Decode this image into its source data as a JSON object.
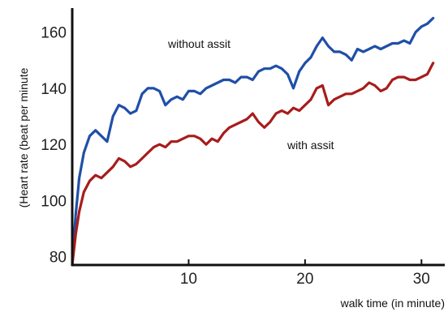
{
  "chart_data": {
    "type": "line",
    "title": "",
    "xlabel": "walk time (in minute)",
    "ylabel": "(Heart rate (beat per minute",
    "xlim": [
      0,
      32
    ],
    "ylim": [
      77,
      168
    ],
    "x_ticks": [
      10,
      20,
      30
    ],
    "y_ticks": [
      80,
      100,
      120,
      140,
      160
    ],
    "grid": false,
    "legend": "none",
    "annotations": [
      {
        "text": "without assit",
        "x": 15.2,
        "y": 155
      },
      {
        "text": "with assit",
        "x": 23.2,
        "y": 123
      }
    ],
    "series": [
      {
        "name": "without assit",
        "color": "#1f4fa8",
        "x": [
          0,
          0.3,
          0.6,
          1.0,
          1.5,
          2.0,
          2.5,
          3.0,
          3.5,
          4.0,
          4.5,
          5.0,
          5.5,
          6.0,
          6.5,
          7.0,
          7.5,
          8.0,
          8.5,
          9.0,
          9.5,
          10.0,
          10.5,
          11.0,
          11.5,
          12.0,
          12.5,
          13.0,
          13.5,
          14.0,
          14.5,
          15.0,
          15.5,
          16.0,
          16.5,
          17.0,
          17.5,
          18.0,
          18.5,
          19.0,
          19.5,
          20.0,
          20.5,
          21.0,
          21.5,
          22.0,
          22.5,
          23.0,
          23.5,
          24.0,
          24.5,
          25.0,
          25.5,
          26.0,
          26.5,
          27.0,
          27.5,
          28.0,
          28.5,
          29.0,
          29.5,
          30.0,
          30.5,
          31.0
        ],
        "values": [
          77,
          95,
          108,
          117,
          123,
          125,
          123,
          121,
          130,
          134,
          133,
          131,
          132,
          138,
          140,
          140,
          139,
          134,
          136,
          137,
          136,
          139,
          139,
          138,
          140,
          141,
          142,
          143,
          143,
          142,
          144,
          144,
          143,
          146,
          147,
          147,
          148,
          147,
          145,
          140,
          146,
          149,
          151,
          155,
          158,
          155,
          153,
          153,
          152,
          150,
          154,
          153,
          154,
          155,
          154,
          155,
          156,
          156,
          157,
          156,
          160,
          162,
          163,
          165
        ]
      },
      {
        "name": "with assit",
        "color": "#a81c1c",
        "x": [
          0,
          0.3,
          0.6,
          1.0,
          1.5,
          2.0,
          2.5,
          3.0,
          3.5,
          4.0,
          4.5,
          5.0,
          5.5,
          6.0,
          6.5,
          7.0,
          7.5,
          8.0,
          8.5,
          9.0,
          9.5,
          10.0,
          10.5,
          11.0,
          11.5,
          12.0,
          12.5,
          13.0,
          13.5,
          14.0,
          14.5,
          15.0,
          15.5,
          16.0,
          16.5,
          17.0,
          17.5,
          18.0,
          18.5,
          19.0,
          19.5,
          20.0,
          20.5,
          21.0,
          21.5,
          22.0,
          22.5,
          23.0,
          23.5,
          24.0,
          24.5,
          25.0,
          25.5,
          26.0,
          26.5,
          27.0,
          27.5,
          28.0,
          28.5,
          29.0,
          29.5,
          30.0,
          30.5,
          31.0
        ],
        "values": [
          77,
          88,
          96,
          103,
          107,
          109,
          108,
          110,
          112,
          115,
          114,
          112,
          113,
          115,
          117,
          119,
          120,
          119,
          121,
          121,
          122,
          123,
          123,
          122,
          120,
          122,
          121,
          124,
          126,
          127,
          128,
          129,
          131,
          128,
          126,
          128,
          131,
          132,
          131,
          133,
          132,
          134,
          136,
          140,
          141,
          134,
          136,
          137,
          138,
          138,
          139,
          140,
          142,
          141,
          139,
          140,
          143,
          144,
          144,
          143,
          143,
          144,
          145,
          149
        ]
      }
    ]
  }
}
